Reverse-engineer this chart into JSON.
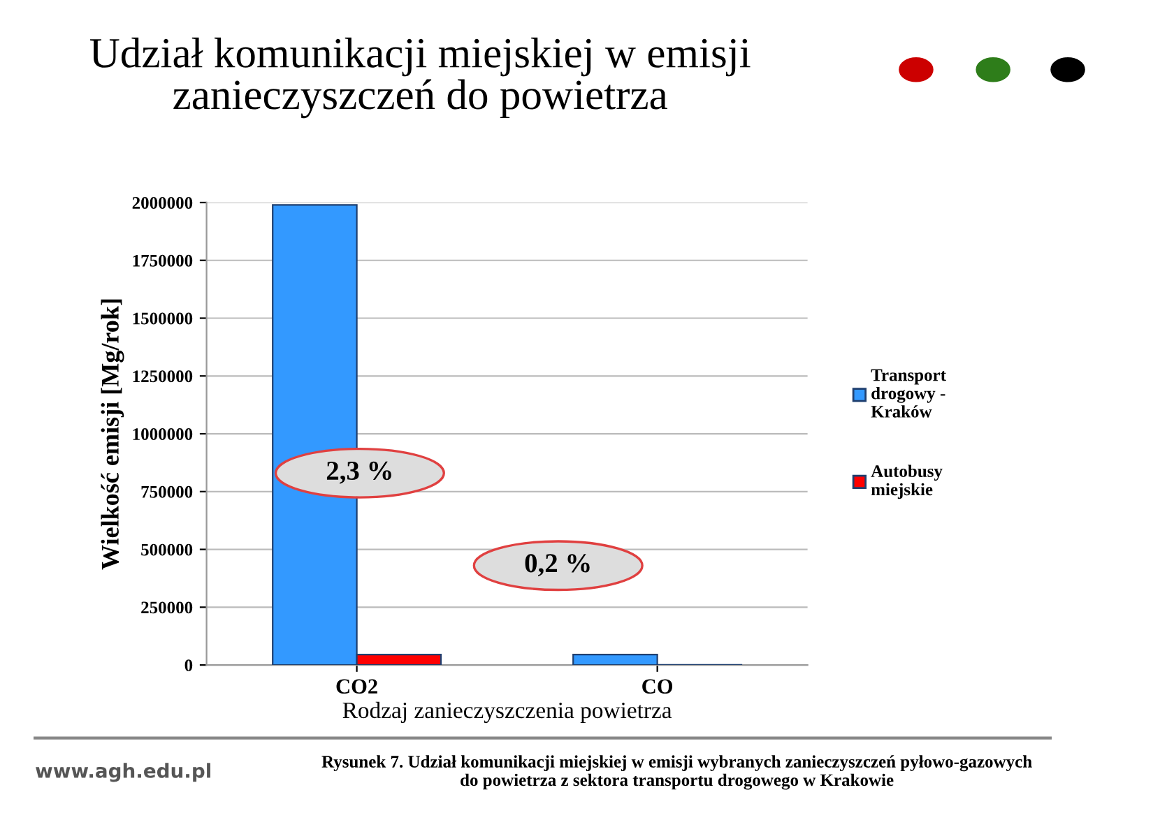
{
  "chart_data": {
    "type": "bar",
    "title": "Udział komunikacji miejskiej w emisji\nzanieczyszczeń do powietrza",
    "xlabel": "Rodzaj zanieczyszczenia powietrza",
    "ylabel": "Wielkość emisji [Mg/rok]",
    "categories": [
      "CO2",
      "CO"
    ],
    "series": [
      {
        "name": "Transport\ndrogowy -\nKraków",
        "color": "#3399ff",
        "values": [
          1990000,
          45000
        ]
      },
      {
        "name": "Autobusy\nmiejskie",
        "color": "#ff0000",
        "values": [
          45000,
          1000
        ]
      }
    ],
    "ylim": [
      0,
      2000000
    ],
    "yticks": [
      0,
      250000,
      500000,
      750000,
      1000000,
      1250000,
      1500000,
      1750000,
      2000000
    ],
    "grid": "y",
    "legend": "right",
    "annotations": [
      "2,3 %",
      "0,2 %",
      "Rysunek 7. Udział komunikacji miejskiej w emisji wybranych zanieczyszczeń pyłowo-gazowych\ndo powietrza z sektora transportu drogowego w Krakowie",
      "www.agh.edu.pl"
    ]
  }
}
